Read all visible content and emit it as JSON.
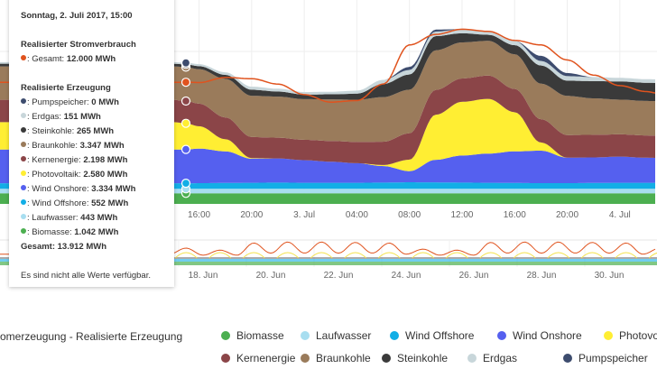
{
  "tooltip": {
    "datetime": "Sonntag, 2. Juli 2017, 15:00",
    "consumption_heading": "Realisierter Stromverbrauch",
    "consumption": {
      "label": "Gesamt:",
      "value": "12.000 MWh",
      "color": "#e0531e"
    },
    "generation_heading": "Realisierte Erzeugung",
    "items": [
      {
        "label": "Pumpspeicher:",
        "value": "0 MWh",
        "color": "#3d4c6e"
      },
      {
        "label": "Erdgas:",
        "value": "151 MWh",
        "color": "#c8d6da"
      },
      {
        "label": "Steinkohle:",
        "value": "265 MWh",
        "color": "#3a3a3a"
      },
      {
        "label": "Braunkohle:",
        "value": "3.347 MWh",
        "color": "#9a7b5b"
      },
      {
        "label": "Kernenergie:",
        "value": "2.198 MWh",
        "color": "#8b4548"
      },
      {
        "label": "Photovoltaik:",
        "value": "2.580 MWh",
        "color": "#ffee33"
      },
      {
        "label": "Wind Onshore:",
        "value": "3.334 MWh",
        "color": "#5560ef"
      },
      {
        "label": "Wind Offshore:",
        "value": "552 MWh",
        "color": "#12aee6"
      },
      {
        "label": "Laufwasser:",
        "value": "443 MWh",
        "color": "#a8def0"
      },
      {
        "label": "Biomasse:",
        "value": "1.042 MWh",
        "color": "#4caf50"
      }
    ],
    "total": "Gesamt: 13.912 MWh",
    "note": "Es sind nicht alle Werte verfügbar."
  },
  "legend": {
    "title": "omerzeugung - Realisierte Erzeugung",
    "items": [
      {
        "label": "Biomasse",
        "color": "#4caf50"
      },
      {
        "label": "Laufwasser",
        "color": "#a8def0"
      },
      {
        "label": "Wind Offshore",
        "color": "#12aee6"
      },
      {
        "label": "Wind Onshore",
        "color": "#5560ef"
      },
      {
        "label": "Photovoltaik",
        "color": "#ffee33"
      },
      {
        "label": "Kernenergie",
        "color": "#8b4548"
      },
      {
        "label": "Braunkohle",
        "color": "#9a7b5b"
      },
      {
        "label": "Steinkohle",
        "color": "#3a3a3a"
      },
      {
        "label": "Erdgas",
        "color": "#c8d6da"
      },
      {
        "label": "Pumpspeicher",
        "color": "#3d4c6e"
      }
    ]
  },
  "chart_data": {
    "type": "area",
    "stacked": true,
    "unit": "MWh",
    "ylim": [
      0,
      20000
    ],
    "grid": true,
    "x": [
      "2017-07-02 14:00",
      "2017-07-02 15:00",
      "2017-07-02 16:00",
      "2017-07-02 18:00",
      "2017-07-02 20:00",
      "2017-07-02 22:00",
      "2017-07-03 00:00",
      "2017-07-03 02:00",
      "2017-07-03 04:00",
      "2017-07-03 06:00",
      "2017-07-03 08:00",
      "2017-07-03 10:00",
      "2017-07-03 12:00",
      "2017-07-03 14:00",
      "2017-07-03 16:00",
      "2017-07-03 18:00",
      "2017-07-03 20:00",
      "2017-07-03 22:00",
      "2017-07-04 00:00",
      "2017-07-04 02:00",
      "2017-07-04 03:00"
    ],
    "x_tick_labels": [
      "16:00",
      "20:00",
      "3. Jul",
      "04:00",
      "08:00",
      "12:00",
      "16:00",
      "20:00",
      "4. Jul"
    ],
    "series": [
      {
        "name": "Biomasse",
        "color": "#4caf50",
        "values": [
          1042,
          1042,
          1040,
          1040,
          1040,
          1040,
          1040,
          1040,
          1040,
          1040,
          1040,
          1040,
          1040,
          1040,
          1040,
          1040,
          1040,
          1040,
          1040,
          1040,
          1040
        ]
      },
      {
        "name": "Laufwasser",
        "color": "#a8def0",
        "values": [
          443,
          443,
          443,
          443,
          443,
          443,
          443,
          443,
          443,
          443,
          443,
          443,
          443,
          443,
          443,
          443,
          443,
          443,
          443,
          443,
          443
        ]
      },
      {
        "name": "Wind Offshore",
        "color": "#12aee6",
        "values": [
          552,
          552,
          560,
          580,
          600,
          620,
          600,
          600,
          600,
          620,
          650,
          640,
          620,
          600,
          580,
          560,
          560,
          580,
          600,
          600,
          600
        ]
      },
      {
        "name": "Wind Onshore",
        "color": "#5560ef",
        "values": [
          3330,
          3334,
          3415,
          3120,
          2380,
          2380,
          2230,
          2080,
          1930,
          1630,
          1100,
          2230,
          2670,
          2880,
          3120,
          3210,
          2520,
          2520,
          2580,
          2470,
          2450
        ]
      },
      {
        "name": "Photovoltaik",
        "color": "#ffee33",
        "values": [
          2700,
          2580,
          2200,
          1200,
          50,
          0,
          0,
          0,
          0,
          100,
          1130,
          4450,
          5300,
          5400,
          3860,
          800,
          0,
          0,
          0,
          0,
          0
        ]
      },
      {
        "name": "Kernenergie",
        "color": "#8b4548",
        "values": [
          2200,
          2198,
          2230,
          2150,
          2080,
          2050,
          2010,
          2050,
          2100,
          2300,
          2600,
          2450,
          2300,
          2300,
          2300,
          2300,
          2230,
          2230,
          2200,
          2200,
          2200
        ]
      },
      {
        "name": "Braunkohle",
        "color": "#9a7b5b",
        "values": [
          3300,
          3347,
          3400,
          3800,
          4070,
          4050,
          4010,
          4100,
          4160,
          4400,
          4300,
          3900,
          3560,
          3420,
          3420,
          3500,
          3860,
          3600,
          3420,
          3400,
          3400
        ]
      },
      {
        "name": "Steinkohle",
        "color": "#3a3a3a",
        "values": [
          265,
          265,
          300,
          400,
          600,
          500,
          450,
          500,
          600,
          1300,
          1500,
          1400,
          900,
          600,
          900,
          1800,
          1500,
          1700,
          1800,
          1800,
          1800
        ]
      },
      {
        "name": "Erdgas",
        "color": "#c8d6da",
        "values": [
          151,
          151,
          200,
          250,
          300,
          280,
          250,
          250,
          300,
          400,
          450,
          450,
          400,
          350,
          400,
          450,
          450,
          400,
          350,
          350,
          350
        ]
      },
      {
        "name": "Pumpspeicher",
        "color": "#3d4c6e",
        "values": [
          0,
          0,
          0,
          0,
          0,
          0,
          0,
          0,
          0,
          0,
          300,
          200,
          0,
          0,
          0,
          500,
          300,
          0,
          0,
          0,
          0
        ]
      }
    ],
    "consumption": {
      "name": "Realisierter Stromverbrauch",
      "color": "#e0531e",
      "values": [
        12000,
        12000,
        11970,
        12470,
        12350,
        11820,
        10780,
        10040,
        10190,
        11820,
        15680,
        16720,
        17230,
        17020,
        16130,
        15680,
        14200,
        12710,
        11670,
        11080,
        10900
      ]
    },
    "navigator": {
      "x_tick_labels": [
        "18. Jun",
        "20. Jun",
        "22. Jun",
        "24. Jun",
        "26. Jun",
        "28. Jun",
        "30. Jun"
      ],
      "x": [
        "2017-06-17 00:00",
        "2017-06-17 12:00",
        "2017-06-18 00:00",
        "2017-06-18 12:00",
        "2017-06-19 00:00",
        "2017-06-19 12:00",
        "2017-06-20 00:00",
        "2017-06-20 12:00",
        "2017-06-21 00:00",
        "2017-06-21 12:00",
        "2017-06-22 00:00",
        "2017-06-22 12:00",
        "2017-06-23 00:00",
        "2017-06-23 12:00",
        "2017-06-24 00:00",
        "2017-06-24 12:00",
        "2017-06-25 00:00",
        "2017-06-25 12:00",
        "2017-06-26 00:00",
        "2017-06-26 12:00",
        "2017-06-27 00:00",
        "2017-06-27 12:00",
        "2017-06-28 00:00",
        "2017-06-28 12:00",
        "2017-06-29 00:00",
        "2017-06-29 12:00",
        "2017-06-30 00:00",
        "2017-06-30 12:00",
        "2017-07-01 00:00",
        "2017-07-01 12:00",
        "2017-07-02 00:00",
        "2017-07-02 12:00",
        "2017-07-03 00:00",
        "2017-07-03 12:00",
        "2017-07-04 00:00"
      ],
      "consumption": [
        11000,
        14000,
        10500,
        13000,
        10500,
        16500,
        11500,
        17000,
        11500,
        17000,
        11500,
        16800,
        11500,
        16500,
        11000,
        13500,
        10500,
        13000,
        10500,
        16800,
        11500,
        17000,
        11500,
        17000,
        11500,
        16800,
        11500,
        16500,
        11000,
        14000,
        10500,
        12500,
        10500,
        17000,
        11500
      ]
    }
  }
}
